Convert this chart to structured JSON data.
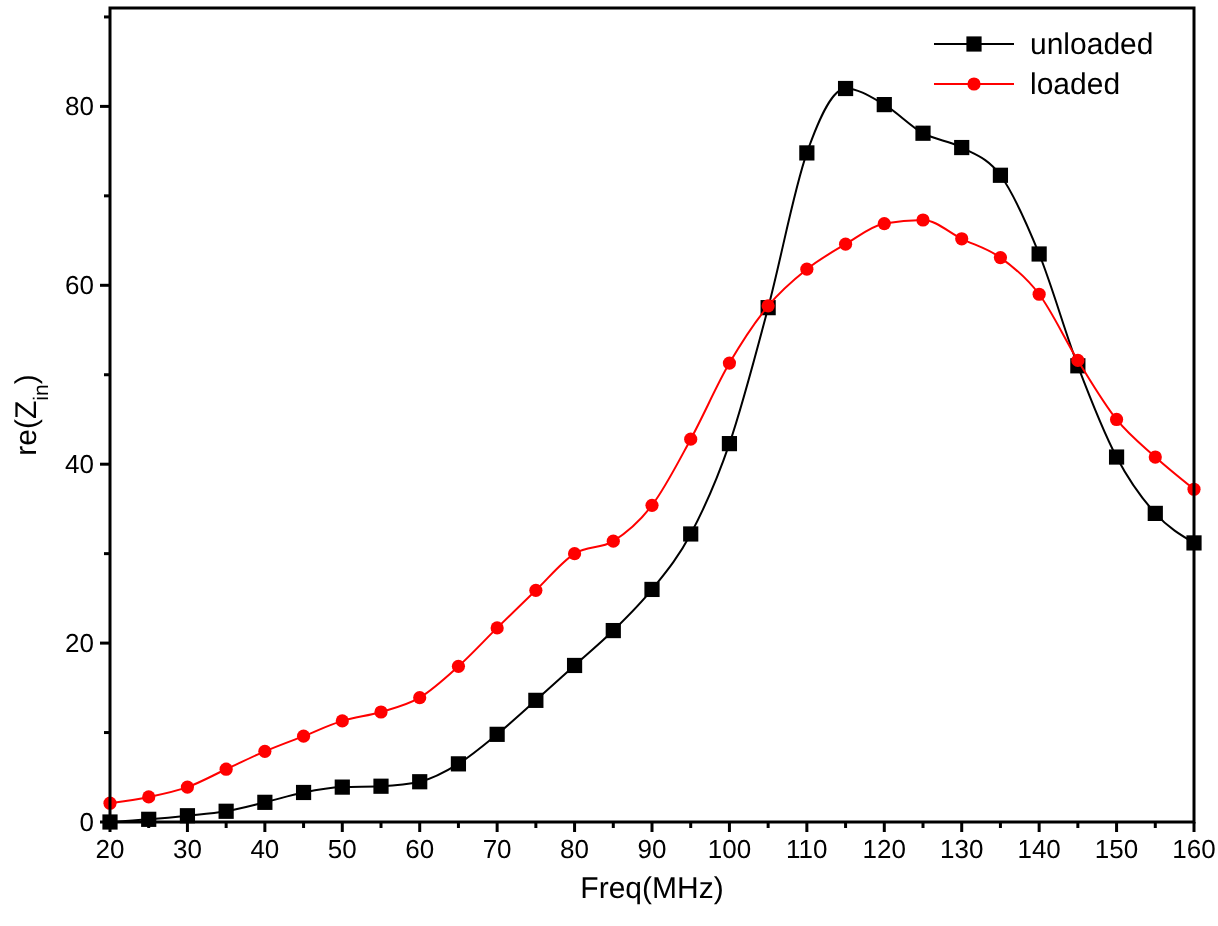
{
  "chart_data": {
    "type": "line",
    "xlabel": "Freq(MHz)",
    "ylabel": "re(Z$_{in}$)",
    "x": [
      20,
      25,
      30,
      35,
      40,
      45,
      50,
      55,
      60,
      65,
      70,
      75,
      80,
      85,
      90,
      95,
      100,
      105,
      110,
      115,
      120,
      125,
      130,
      135,
      140,
      145,
      150,
      155,
      160
    ],
    "series": [
      {
        "name": "unloaded",
        "color": "#000000",
        "marker": "square",
        "values": [
          0,
          0.3,
          0.7,
          1.2,
          2.2,
          3.3,
          3.9,
          4,
          4.5,
          6.5,
          9.8,
          13.6,
          17.5,
          21.4,
          26,
          32.2,
          42.3,
          57.5,
          74.8,
          82,
          80.2,
          77,
          75.4,
          72.3,
          63.5,
          51,
          40.8,
          34.5,
          31.2
        ]
      },
      {
        "name": "loaded",
        "color": "#ff0000",
        "marker": "circle",
        "values": [
          2.1,
          2.8,
          3.9,
          5.9,
          7.9,
          9.6,
          11.3,
          12.3,
          13.9,
          17.4,
          21.7,
          25.9,
          30,
          31.4,
          35.4,
          42.8,
          51.3,
          57.7,
          61.8,
          64.6,
          66.9,
          67.3,
          65.2,
          63.1,
          59,
          51.6,
          45,
          40.8,
          37.2
        ]
      }
    ],
    "xlim": [
      20,
      160
    ],
    "ylim": [
      0,
      91
    ],
    "xticks": [
      20,
      {
        "value": 25,
        "label": null
      },
      30,
      {
        "value": 35,
        "label": null
      },
      40,
      {
        "value": 45,
        "label": null
      },
      50,
      {
        "value": 55,
        "label": null
      },
      60,
      {
        "value": 65,
        "label": null
      },
      70,
      {
        "value": 75,
        "label": null
      },
      80,
      {
        "value": 85,
        "label": null
      },
      90,
      {
        "value": 95,
        "label": null
      },
      100,
      {
        "value": 105,
        "label": null
      },
      110,
      {
        "value": 115,
        "label": null
      },
      120,
      {
        "value": 125,
        "label": null
      },
      130,
      {
        "value": 135,
        "label": null
      },
      140,
      {
        "value": 145,
        "label": null
      },
      150,
      {
        "value": 155,
        "label": null
      },
      160
    ],
    "yticks": [
      0,
      {
        "value": 10,
        "label": null
      },
      20,
      {
        "value": 30,
        "label": null
      },
      40,
      {
        "value": 50,
        "label": null
      },
      60,
      {
        "value": 70,
        "label": null
      },
      80,
      {
        "value": 90,
        "label": null
      }
    ],
    "legend": "top right",
    "grid": false,
    "line_style": "solid"
  }
}
